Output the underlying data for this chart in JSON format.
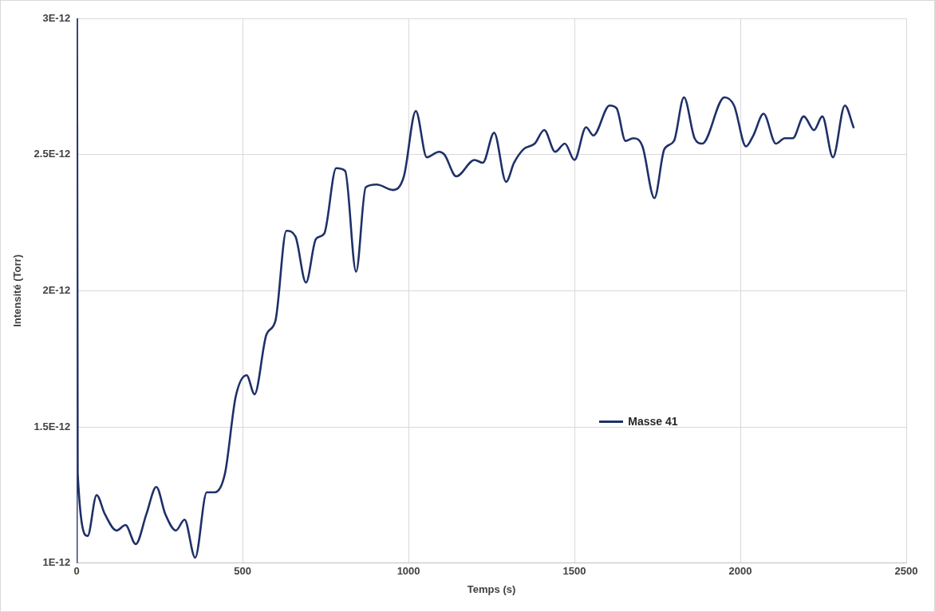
{
  "chart_data": {
    "type": "line",
    "xlabel": "Temps (s)",
    "ylabel": "Intensité (Torr)",
    "xlim": [
      0,
      2500
    ],
    "xticks": [
      0,
      500,
      1000,
      1500,
      2000,
      2500
    ],
    "ylim": [
      1e-12,
      3e-12
    ],
    "yticks": [
      {
        "value": 1e-12,
        "label": "1E-12"
      },
      {
        "value": 1.5e-12,
        "label": "1.5E-12"
      },
      {
        "value": 2e-12,
        "label": "2E-12"
      },
      {
        "value": 2.5e-12,
        "label": "2.5E-12"
      },
      {
        "value": 3e-12,
        "label": "3E-12"
      }
    ],
    "grid": true,
    "legend": "right",
    "marker": "none",
    "line_style": "solid",
    "series": [
      {
        "name": "Masse 41",
        "color": "#1f3068",
        "x": [
          0,
          1,
          3,
          33,
          60,
          85,
          120,
          147,
          178,
          210,
          240,
          267,
          299,
          325,
          357,
          392,
          416,
          447,
          479,
          512,
          536,
          572,
          599,
          632,
          659,
          691,
          721,
          746,
          782,
          809,
          842,
          871,
          904,
          953,
          986,
          1022,
          1055,
          1092,
          1108,
          1144,
          1199,
          1224,
          1258,
          1294,
          1318,
          1347,
          1380,
          1409,
          1442,
          1471,
          1500,
          1535,
          1557,
          1606,
          1627,
          1654,
          1677,
          1705,
          1741,
          1771,
          1800,
          1830,
          1862,
          1885,
          1952,
          1981,
          2017,
          2039,
          2070,
          2107,
          2134,
          2158,
          2191,
          2222,
          2247,
          2279,
          2315,
          2341
        ],
        "values": [
          1e-12,
          3e-12,
          1.33e-12,
          1.1e-12,
          1.25e-12,
          1.18e-12,
          1.12e-12,
          1.14e-12,
          1.07e-12,
          1.18e-12,
          1.28e-12,
          1.18e-12,
          1.12e-12,
          1.16e-12,
          1.02e-12,
          1.26e-12,
          1.26e-12,
          1.33e-12,
          1.61e-12,
          1.69e-12,
          1.62e-12,
          1.84e-12,
          1.89e-12,
          2.22e-12,
          2.2e-12,
          2.03e-12,
          2.19e-12,
          2.21e-12,
          2.45e-12,
          2.44e-12,
          2.07e-12,
          2.38e-12,
          2.39e-12,
          2.37e-12,
          2.42e-12,
          2.66e-12,
          2.49e-12,
          2.51e-12,
          2.5e-12,
          2.42e-12,
          2.48e-12,
          2.47e-12,
          2.58e-12,
          2.4e-12,
          2.47e-12,
          2.52e-12,
          2.54e-12,
          2.59e-12,
          2.51e-12,
          2.54e-12,
          2.48e-12,
          2.6e-12,
          2.57e-12,
          2.68e-12,
          2.67e-12,
          2.55e-12,
          2.56e-12,
          2.53e-12,
          2.34e-12,
          2.52e-12,
          2.55e-12,
          2.71e-12,
          2.56e-12,
          2.54e-12,
          2.71e-12,
          2.68e-12,
          2.53e-12,
          2.57e-12,
          2.65e-12,
          2.54e-12,
          2.56e-12,
          2.56e-12,
          2.64e-12,
          2.59e-12,
          2.64e-12,
          2.49e-12,
          2.68e-12,
          2.6e-12
        ]
      }
    ]
  }
}
